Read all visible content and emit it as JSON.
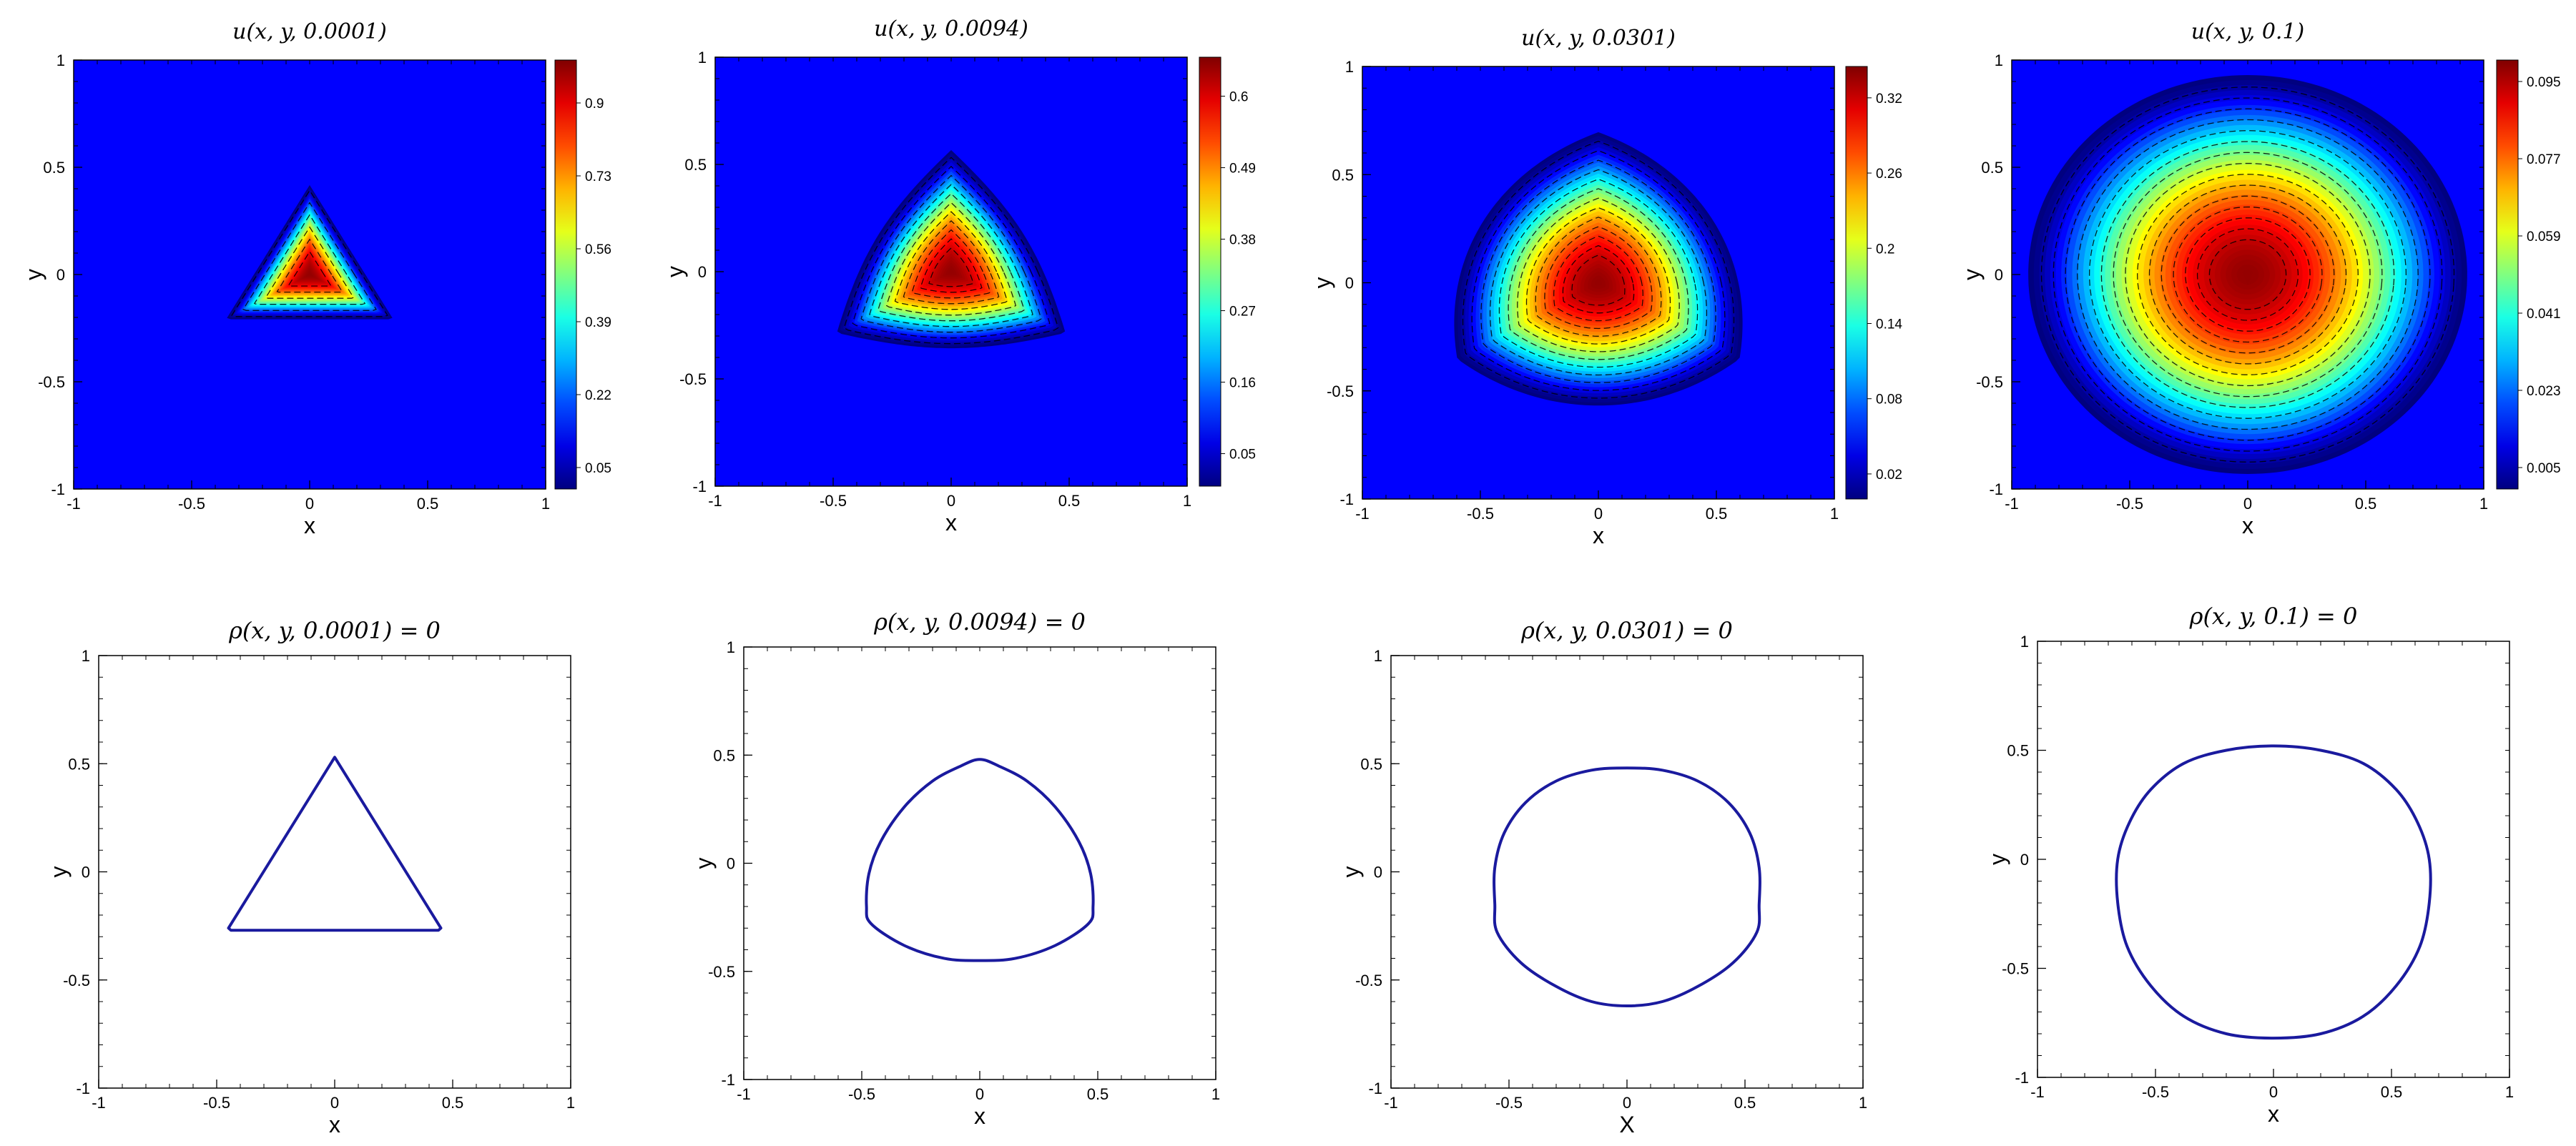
{
  "chart_data": [
    {
      "type": "heatmap",
      "title": "u(x, y, 0.0001)",
      "xlabel": "x",
      "ylabel": "y",
      "xlim": [
        -1,
        1
      ],
      "ylim": [
        -1,
        1
      ],
      "xticks": [
        "-1",
        "-0.5",
        "0",
        "0.5",
        "1"
      ],
      "yticks": [
        "-1",
        "-0.5",
        "0",
        "0.5",
        "1"
      ],
      "colorbar_ticks": [
        0.05,
        0.22,
        0.39,
        0.56,
        0.73,
        0.9
      ],
      "colorbar_labels": [
        "0.05",
        "0.22",
        "0.39",
        "0.56",
        "0.73",
        "0.9"
      ],
      "value_range": [
        0,
        1.0
      ],
      "shape": "triangle",
      "support_radius": 0.55,
      "peak_center": [
        0,
        0
      ],
      "contour_count": 6,
      "colormap": "jet",
      "background_color": "#0000FF"
    },
    {
      "type": "heatmap",
      "title": "u(x, y, 0.0094)",
      "xlabel": "x",
      "ylabel": "y",
      "xlim": [
        -1,
        1
      ],
      "ylim": [
        -1,
        1
      ],
      "xticks": [
        "-1",
        "-0.5",
        "0",
        "0.5",
        "1"
      ],
      "yticks": [
        "-1",
        "-0.5",
        "0",
        "0.5",
        "1"
      ],
      "colorbar_ticks": [
        0.05,
        0.16,
        0.27,
        0.38,
        0.49,
        0.6
      ],
      "colorbar_labels": [
        "0.05",
        "0.16",
        "0.27",
        "0.38",
        "0.49",
        "0.6"
      ],
      "value_range": [
        0,
        0.66
      ],
      "shape": "rounded-triangle",
      "support_radius": 0.62,
      "peak_center": [
        0,
        0
      ],
      "contour_count": 11,
      "colormap": "jet",
      "background_color": "#0000FF"
    },
    {
      "type": "heatmap",
      "title": "u(x, y, 0.0301)",
      "xlabel": "x",
      "ylabel": "y",
      "xlim": [
        -1,
        1
      ],
      "ylim": [
        -1,
        1
      ],
      "xticks": [
        "-1",
        "-0.5",
        "0",
        "0.5",
        "1"
      ],
      "yticks": [
        "-1",
        "-0.5",
        "0",
        "0.5",
        "1"
      ],
      "colorbar_ticks": [
        0.02,
        0.08,
        0.14,
        0.2,
        0.26,
        0.32
      ],
      "colorbar_labels": [
        "0.02",
        "0.08",
        "0.14",
        "0.2",
        "0.26",
        "0.32"
      ],
      "value_range": [
        0,
        0.345
      ],
      "shape": "near-circle",
      "support_radius": 0.72,
      "peak_center": [
        0,
        0
      ],
      "contour_count": 13,
      "colormap": "jet",
      "background_color": "#0000FF"
    },
    {
      "type": "heatmap",
      "title": "u(x, y, 0.1)",
      "xlabel": "x",
      "ylabel": "y",
      "xlim": [
        -1,
        1
      ],
      "ylim": [
        -1,
        1
      ],
      "xticks": [
        "-1",
        "-0.5",
        "0",
        "0.5",
        "1"
      ],
      "yticks": [
        "-1",
        "-0.5",
        "0",
        "0.5",
        "1"
      ],
      "colorbar_ticks": [
        0.005,
        0.023,
        0.041,
        0.059,
        0.077,
        0.095
      ],
      "colorbar_labels": [
        "0.005",
        "0.023",
        "0.041",
        "0.059",
        "0.077",
        "0.095"
      ],
      "value_range": [
        0,
        0.1
      ],
      "shape": "circle",
      "support_radius": 0.93,
      "peak_center": [
        0,
        -0.05
      ],
      "contour_count": 15,
      "colormap": "jet",
      "background_color": "#0000FF"
    },
    {
      "type": "line",
      "title": "ρ(x, y, 0.0001) = 0",
      "xlabel": "x",
      "ylabel": "y",
      "xlim": [
        -1,
        1
      ],
      "ylim": [
        -1,
        1
      ],
      "xticks": [
        "-1",
        "-0.5",
        "0",
        "0.5",
        "1"
      ],
      "yticks": [
        "-1",
        "-0.5",
        "0",
        "0.5",
        "1"
      ],
      "line_color": "#1a1a9e",
      "closed": true,
      "x": [
        0.0,
        0.45,
        0.44,
        0.0,
        -0.44,
        -0.45
      ],
      "y": [
        0.53,
        -0.26,
        -0.27,
        -0.27,
        -0.27,
        -0.26
      ]
    },
    {
      "type": "line",
      "title": "ρ(x, y, 0.0094) = 0",
      "xlabel": "x",
      "ylabel": "y",
      "xlim": [
        -1,
        1
      ],
      "ylim": [
        -1,
        1
      ],
      "xticks": [
        "-1",
        "-0.5",
        "0",
        "0.5",
        "1"
      ],
      "yticks": [
        "-1",
        "-0.5",
        "0",
        "0.5",
        "1"
      ],
      "line_color": "#1a1a9e",
      "closed": true,
      "x": [
        0.0,
        0.08,
        0.2,
        0.32,
        0.42,
        0.47,
        0.48,
        0.46,
        0.32,
        0.15,
        0.0,
        -0.15,
        -0.32,
        -0.46,
        -0.48,
        -0.47,
        -0.42,
        -0.32,
        -0.2,
        -0.08
      ],
      "y": [
        0.48,
        0.45,
        0.38,
        0.26,
        0.1,
        -0.05,
        -0.2,
        -0.28,
        -0.38,
        -0.44,
        -0.45,
        -0.44,
        -0.38,
        -0.28,
        -0.2,
        -0.05,
        0.1,
        0.26,
        0.38,
        0.45
      ]
    },
    {
      "type": "line",
      "title": "ρ(x, y, 0.0301) = 0",
      "xlabel": "X",
      "ylabel": "y",
      "xlim": [
        -1,
        1
      ],
      "ylim": [
        -1,
        1
      ],
      "xticks": [
        "-1",
        "-0.5",
        "0",
        "0.5",
        "1"
      ],
      "yticks": [
        "-1",
        "-0.5",
        "0",
        "0.5",
        "1"
      ],
      "line_color": "#1a1a9e",
      "closed": true,
      "x": [
        0.0,
        0.15,
        0.3,
        0.43,
        0.52,
        0.56,
        0.56,
        0.55,
        0.45,
        0.3,
        0.15,
        0.0,
        -0.15,
        -0.3,
        -0.45,
        -0.55,
        -0.56,
        -0.56,
        -0.52,
        -0.43,
        -0.3,
        -0.15
      ],
      "y": [
        0.48,
        0.47,
        0.42,
        0.32,
        0.18,
        0.02,
        -0.15,
        -0.28,
        -0.42,
        -0.53,
        -0.6,
        -0.62,
        -0.6,
        -0.53,
        -0.42,
        -0.28,
        -0.15,
        0.02,
        0.18,
        0.32,
        0.42,
        0.47
      ]
    },
    {
      "type": "line",
      "title": "ρ(x, y, 0.1) = 0",
      "xlabel": "x",
      "ylabel": "y",
      "xlim": [
        -1,
        1
      ],
      "ylim": [
        -1,
        1
      ],
      "xticks": [
        "-1",
        "-0.5",
        "0",
        "0.5",
        "1"
      ],
      "yticks": [
        "-1",
        "-0.5",
        "0",
        "0.5",
        "1"
      ],
      "line_color": "#1a1a9e",
      "closed": true,
      "x": [
        0.0,
        0.2,
        0.38,
        0.52,
        0.61,
        0.66,
        0.66,
        0.62,
        0.52,
        0.38,
        0.2,
        0.0,
        -0.2,
        -0.38,
        -0.52,
        -0.62,
        -0.66,
        -0.66,
        -0.61,
        -0.52,
        -0.38,
        -0.2
      ],
      "y": [
        0.52,
        0.5,
        0.44,
        0.32,
        0.17,
        0.0,
        -0.2,
        -0.4,
        -0.58,
        -0.72,
        -0.8,
        -0.82,
        -0.8,
        -0.72,
        -0.58,
        -0.4,
        -0.2,
        0.0,
        0.17,
        0.32,
        0.44,
        0.5
      ]
    }
  ]
}
